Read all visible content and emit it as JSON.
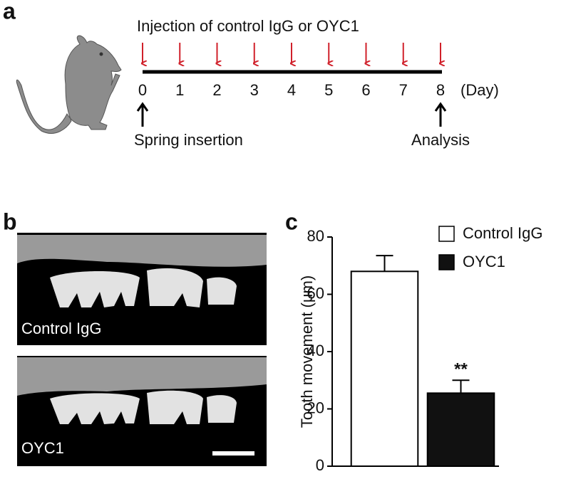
{
  "panel_labels": [
    "a",
    "b",
    "c"
  ],
  "timeline": {
    "title": "Injection of control IgG or OYC1",
    "days": [
      0,
      1,
      2,
      3,
      4,
      5,
      6,
      7,
      8
    ],
    "unit": "(Day)",
    "start_label": "Spring insertion",
    "end_label": "Analysis"
  },
  "images": [
    {
      "label": "Control IgG"
    },
    {
      "label": "OYC1"
    }
  ],
  "chart_data": {
    "type": "bar",
    "ylabel": "Tooth movement (μm)",
    "categories": [
      null,
      null
    ],
    "series": [
      {
        "name": "Control IgG",
        "color": "#ffffff",
        "values": [
          68,
          null
        ],
        "errors": [
          5.5,
          null
        ]
      },
      {
        "name": "OYC1",
        "color": "#111111",
        "values": [
          null,
          25.5
        ],
        "errors": [
          null,
          4.5
        ]
      }
    ],
    "annotation": "**",
    "ylim": [
      0,
      80
    ],
    "yticks": [
      0,
      20,
      40,
      60,
      80
    ],
    "legend": "top-right"
  }
}
